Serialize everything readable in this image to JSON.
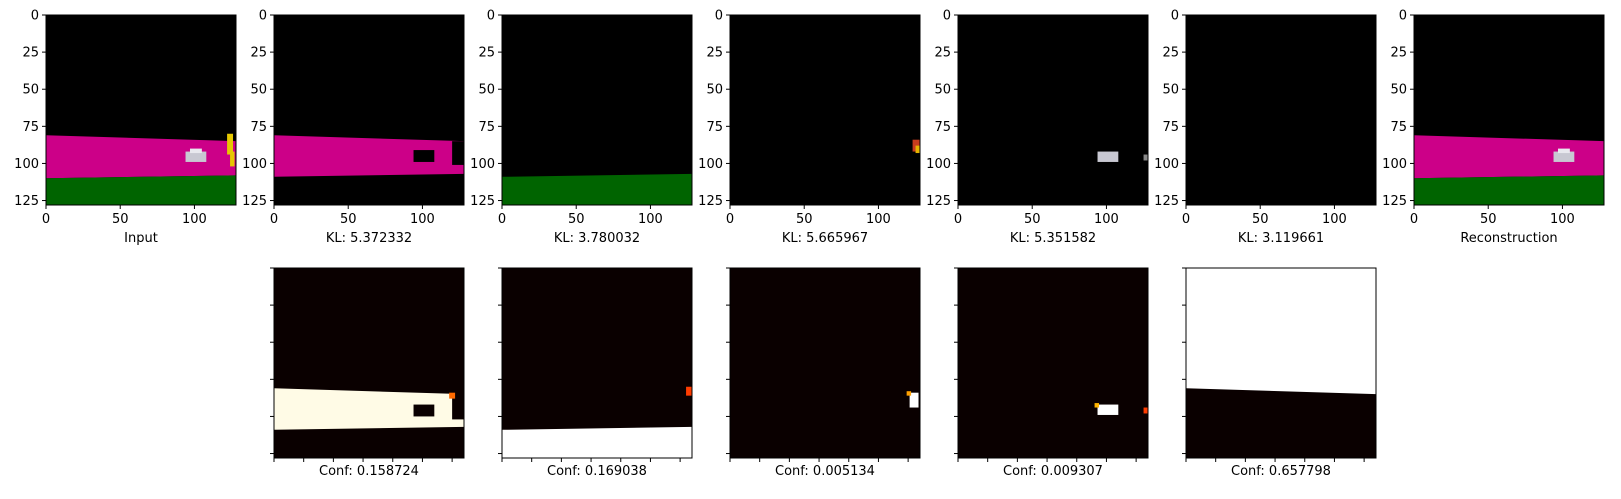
{
  "chart_data": [
    {
      "type": "heatmap",
      "title": "",
      "xlabel": "Input",
      "ylabel": "",
      "xlim": [
        0,
        128
      ],
      "ylim": [
        128,
        0
      ],
      "x_ticks": [
        "0",
        "50",
        "100"
      ],
      "y_ticks": [
        "0",
        "25",
        "50",
        "75",
        "100",
        "125"
      ],
      "bands": [
        {
          "color": "#cc0088",
          "top_left": 81,
          "top_right": 85,
          "bottom_left": 110,
          "bottom_right": 108
        },
        {
          "color": "#006400",
          "top_left": 110,
          "top_right": 108,
          "bottom_left": 128,
          "bottom_right": 128
        }
      ]
    },
    {
      "type": "heatmap",
      "title": "",
      "xlabel": "KL: 5.372332",
      "ylabel": "",
      "xlim": [
        0,
        128
      ],
      "ylim": [
        128,
        0
      ],
      "x_ticks": [
        "0",
        "50",
        "100"
      ],
      "y_ticks": [
        "0",
        "25",
        "50",
        "75",
        "100",
        "125"
      ],
      "bands": [
        {
          "color": "#cc0088",
          "top_left": 81,
          "top_right": 85,
          "bottom_left": 109,
          "bottom_right": 107
        }
      ]
    },
    {
      "type": "heatmap",
      "title": "",
      "xlabel": "KL: 3.780032",
      "ylabel": "",
      "xlim": [
        0,
        128
      ],
      "ylim": [
        128,
        0
      ],
      "x_ticks": [
        "0",
        "50",
        "100"
      ],
      "y_ticks": [
        "0",
        "25",
        "50",
        "75",
        "100",
        "125"
      ],
      "bands": [
        {
          "color": "#006400",
          "top_left": 109,
          "top_right": 107,
          "bottom_left": 128,
          "bottom_right": 128
        }
      ]
    },
    {
      "type": "heatmap",
      "title": "",
      "xlabel": "KL: 5.665967",
      "ylabel": "",
      "xlim": [
        0,
        128
      ],
      "ylim": [
        128,
        0
      ],
      "x_ticks": [
        "0",
        "50",
        "100"
      ],
      "y_ticks": [
        "0",
        "25",
        "50",
        "75",
        "100",
        "125"
      ],
      "bands": []
    },
    {
      "type": "heatmap",
      "title": "",
      "xlabel": "KL: 5.351582",
      "ylabel": "",
      "xlim": [
        0,
        128
      ],
      "ylim": [
        128,
        0
      ],
      "x_ticks": [
        "0",
        "50",
        "100"
      ],
      "y_ticks": [
        "0",
        "25",
        "50",
        "75",
        "100",
        "125"
      ],
      "bands": []
    },
    {
      "type": "heatmap",
      "title": "",
      "xlabel": "KL: 3.119661",
      "ylabel": "",
      "xlim": [
        0,
        128
      ],
      "ylim": [
        128,
        0
      ],
      "x_ticks": [
        "0",
        "50",
        "100"
      ],
      "y_ticks": [
        "0",
        "25",
        "50",
        "75",
        "100",
        "125"
      ],
      "bands": []
    },
    {
      "type": "heatmap",
      "title": "",
      "xlabel": "Reconstruction",
      "ylabel": "",
      "xlim": [
        0,
        128
      ],
      "ylim": [
        128,
        0
      ],
      "x_ticks": [
        "0",
        "50",
        "100"
      ],
      "y_ticks": [
        "0",
        "25",
        "50",
        "75",
        "100",
        "125"
      ],
      "bands": [
        {
          "color": "#cc0088",
          "top_left": 81,
          "top_right": 85,
          "bottom_left": 110,
          "bottom_right": 108
        },
        {
          "color": "#006400",
          "top_left": 110,
          "top_right": 108,
          "bottom_left": 128,
          "bottom_right": 128
        }
      ]
    },
    {
      "type": "heatmap",
      "title": "",
      "xlabel": "Conf: 0.158724",
      "ylabel": "",
      "xlim": [
        0,
        128
      ],
      "ylim": [
        128,
        0
      ],
      "bands": [
        {
          "color": "#fffbe6",
          "top_left": 81,
          "top_right": 85,
          "bottom_left": 109,
          "bottom_right": 107
        }
      ]
    },
    {
      "type": "heatmap",
      "title": "",
      "xlabel": "Conf: 0.169038",
      "ylabel": "",
      "xlim": [
        0,
        128
      ],
      "ylim": [
        128,
        0
      ],
      "bands": [
        {
          "color": "#ffffff",
          "top_left": 109,
          "top_right": 107,
          "bottom_left": 128,
          "bottom_right": 128
        }
      ]
    },
    {
      "type": "heatmap",
      "title": "",
      "xlabel": "Conf: 0.005134",
      "ylabel": "",
      "xlim": [
        0,
        128
      ],
      "ylim": [
        128,
        0
      ],
      "bands": []
    },
    {
      "type": "heatmap",
      "title": "",
      "xlabel": "Conf: 0.009307",
      "ylabel": "",
      "xlim": [
        0,
        128
      ],
      "ylim": [
        128,
        0
      ],
      "bands": []
    },
    {
      "type": "heatmap",
      "title": "",
      "xlabel": "Conf: 0.657798",
      "ylabel": "",
      "xlim": [
        0,
        128
      ],
      "ylim": [
        128,
        0
      ],
      "bands": [
        {
          "color": "#ffffff",
          "top_left": 0,
          "top_right": 0,
          "bottom_left": 81,
          "bottom_right": 85
        }
      ]
    }
  ],
  "colors": {
    "road": "#cc0088",
    "vegetation": "#006400",
    "car": "#c8c8d2",
    "yellow": "#e6c800",
    "background": "#000000",
    "heat_low": "#0a0000",
    "heat_high": "#ffffff"
  }
}
